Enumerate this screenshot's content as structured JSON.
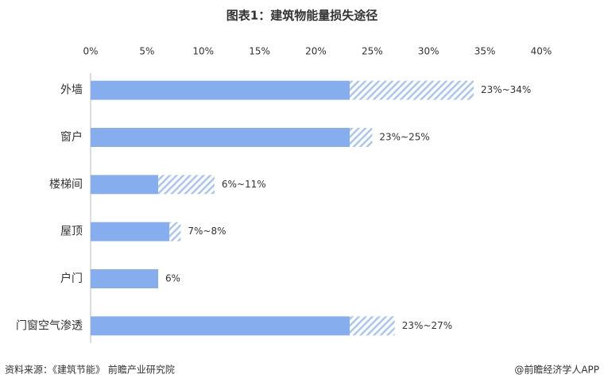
{
  "chart_data": {
    "type": "range-bar",
    "title": "图表1：建筑物能量损失途径",
    "categories": [
      "外墙",
      "窗户",
      "楼梯间",
      "屋顶",
      "户门",
      "门窗空气渗透"
    ],
    "series": [
      {
        "color": "#86aeee",
        "values": [
          23,
          23,
          6,
          7,
          6,
          23
        ]
      },
      {
        "color": "#86aeee",
        "hatch": true,
        "values": [
          34,
          25,
          11,
          8,
          6,
          27
        ]
      }
    ],
    "value_labels": [
      "23%~34%",
      "23%~25%",
      "6%~11%",
      "7%~8%",
      "6%",
      "23%~27%"
    ],
    "xlim": [
      0,
      40
    ],
    "xticks": [
      {
        "value": 0,
        "label": "0%"
      },
      {
        "value": 5,
        "label": "5%"
      },
      {
        "value": 10,
        "label": "10%"
      },
      {
        "value": 15,
        "label": "15%"
      },
      {
        "value": 20,
        "label": "20%"
      },
      {
        "value": 25,
        "label": "25%"
      },
      {
        "value": 30,
        "label": "30%"
      },
      {
        "value": 35,
        "label": "35%"
      },
      {
        "value": 40,
        "label": "40%"
      }
    ],
    "source": "资料来源：《建筑节能》 前瞻产业研究院",
    "credit": "@前瞻经济学人APP"
  }
}
